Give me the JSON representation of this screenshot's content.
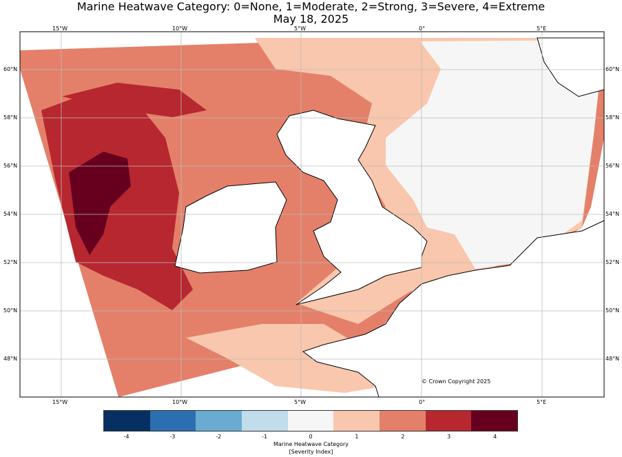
{
  "title": {
    "line1": "Marine Heatwave Category: 0=None, 1=Moderate, 2=Strong, 3=Severe, 4=Extreme",
    "line2": "May 18, 2025"
  },
  "lon_ticks": [
    "15°W",
    "10°W",
    "5°W",
    "0°",
    "5°E"
  ],
  "lat_ticks": [
    "60°N",
    "58°N",
    "56°N",
    "54°N",
    "52°N",
    "50°N",
    "48°N"
  ],
  "copyright": "© Crown Copyright 2025",
  "colorbar": {
    "ticks": [
      "-4",
      "-3",
      "-2",
      "-1",
      "0",
      "1",
      "2",
      "3",
      "4"
    ],
    "colors": [
      "#053061",
      "#2b6fb0",
      "#6aabd2",
      "#c1dceb",
      "#f7f6f6",
      "#f9c7ad",
      "#e4806a",
      "#b7272f",
      "#67001f"
    ],
    "label1": "Marine Heatwave Category",
    "label2": "[Severity Index]"
  }
}
